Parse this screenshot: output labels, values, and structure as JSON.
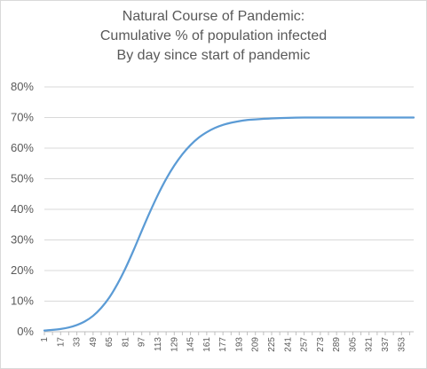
{
  "chart_data": {
    "type": "line",
    "title": [
      "Natural Course of Pandemic:",
      "Cumulative % of population infected",
      "By day since start of pandemic"
    ],
    "xlabel": "",
    "ylabel": "",
    "ylim": [
      0,
      0.8
    ],
    "y_ticks": [
      0,
      0.1,
      0.2,
      0.3,
      0.4,
      0.5,
      0.6,
      0.7,
      0.8
    ],
    "y_tick_labels": [
      "0%",
      "10%",
      "20%",
      "30%",
      "40%",
      "50%",
      "60%",
      "70%",
      "80%"
    ],
    "x_range": [
      1,
      365
    ],
    "x_tick_labels": [
      "1",
      "17",
      "33",
      "49",
      "65",
      "81",
      "97",
      "113",
      "129",
      "145",
      "161",
      "177",
      "193",
      "209",
      "225",
      "241",
      "257",
      "273",
      "289",
      "305",
      "321",
      "337",
      "353"
    ],
    "grid": true,
    "legend": "none",
    "series": [
      {
        "color": "#5b9bd5",
        "points": [
          [
            1,
            0.004
          ],
          [
            9,
            0.006
          ],
          [
            17,
            0.009
          ],
          [
            25,
            0.014
          ],
          [
            33,
            0.022
          ],
          [
            41,
            0.034
          ],
          [
            49,
            0.052
          ],
          [
            57,
            0.078
          ],
          [
            65,
            0.112
          ],
          [
            73,
            0.156
          ],
          [
            81,
            0.208
          ],
          [
            89,
            0.267
          ],
          [
            97,
            0.33
          ],
          [
            105,
            0.391
          ],
          [
            113,
            0.448
          ],
          [
            121,
            0.499
          ],
          [
            129,
            0.543
          ],
          [
            137,
            0.58
          ],
          [
            145,
            0.61
          ],
          [
            153,
            0.634
          ],
          [
            161,
            0.652
          ],
          [
            169,
            0.666
          ],
          [
            177,
            0.676
          ],
          [
            185,
            0.683
          ],
          [
            193,
            0.688
          ],
          [
            201,
            0.692
          ],
          [
            209,
            0.694
          ],
          [
            225,
            0.697
          ],
          [
            241,
            0.699
          ],
          [
            257,
            0.7
          ],
          [
            273,
            0.7
          ],
          [
            289,
            0.7
          ],
          [
            305,
            0.7
          ],
          [
            321,
            0.7
          ],
          [
            337,
            0.7
          ],
          [
            353,
            0.7
          ],
          [
            365,
            0.7
          ]
        ]
      }
    ]
  }
}
